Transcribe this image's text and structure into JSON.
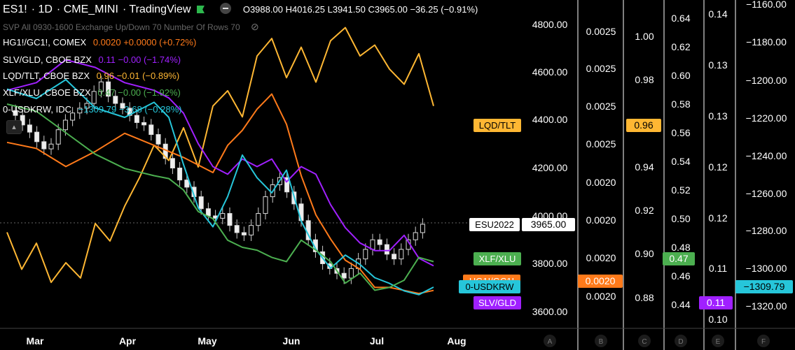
{
  "header": {
    "symbol": "ES1!",
    "interval": "1D",
    "exchange": "CME_MINI",
    "brand": "TradingView",
    "open_label": "O",
    "open": "3988.00",
    "high_label": "H",
    "high": "4016.25",
    "low_label": "L",
    "low": "3941.50",
    "close_label": "C",
    "close": "3965.00",
    "change": "−36.25 (−0.91%)"
  },
  "indicator": {
    "label": "SVP All 0930-1600 Exchange Up/Down 70 Number Of Rows 70"
  },
  "legend": [
    {
      "name": "HG1!/GC1!, COMEX",
      "value": "0.0020",
      "change": "+0.0000 (+0.72%)",
      "color": "#ff7a1a"
    },
    {
      "name": "SLV/GLD, CBOE BZX",
      "value": "0.11",
      "change": "−0.00 (−1.74%)",
      "color": "#a020ff"
    },
    {
      "name": "LQD/TLT, CBOE BZX",
      "value": "0.96",
      "change": "−0.01 (−0.89%)",
      "color": "#ffb733"
    },
    {
      "name": "XLF/XLU, CBOE BZX",
      "value": "0.47",
      "change": "−0.00 (−1.92%)",
      "color": "#4caf50"
    },
    {
      "name": "0-USDKRW, IDC",
      "value": "−1309.79",
      "change": "−3.68 (−0.28%)",
      "color": "#26c6da"
    }
  ],
  "chart_data": {
    "type": "line",
    "x_ticks": [
      "Mar",
      "Apr",
      "May",
      "Jun",
      "Jul",
      "Aug"
    ],
    "axes": [
      {
        "id": "ES",
        "ticks": [
          "4800.00",
          "4600.00",
          "4400.00",
          "4200.00",
          "4000.00",
          "3800.00",
          "3600.00"
        ],
        "range": [
          3600,
          4800
        ]
      },
      {
        "id": "A",
        "ticks": [
          "0.0025",
          "0.0025",
          "0.0025",
          "0.0025",
          "0.0020",
          "0.0020",
          "0.0020",
          "0.0020"
        ]
      },
      {
        "id": "B",
        "ticks": [
          "1.00",
          "0.98",
          "0.96",
          "0.94",
          "0.92",
          "0.90",
          "0.88"
        ],
        "range": [
          0.88,
          1.0
        ]
      },
      {
        "id": "C",
        "ticks": [
          "0.64",
          "0.62",
          "0.60",
          "0.58",
          "0.56",
          "0.54",
          "0.52",
          "0.50",
          "0.48",
          "0.46",
          "0.44"
        ],
        "range": [
          0.44,
          0.64
        ]
      },
      {
        "id": "D",
        "ticks": [
          "0.14",
          "0.13",
          "0.13",
          "0.12",
          "0.12",
          "0.11",
          "0.10"
        ],
        "range": [
          0.1,
          0.14
        ]
      },
      {
        "id": "E",
        "ticks": [
          "−1160.00",
          "−1180.00",
          "−1200.00",
          "−1220.00",
          "−1240.00",
          "−1260.00",
          "−1280.00",
          "−1300.00",
          "−1320.00"
        ],
        "range": [
          -1320,
          -1160
        ]
      }
    ],
    "bottom_axis_letters": [
      "A",
      "B",
      "C",
      "D",
      "E",
      "F"
    ],
    "price_tags": [
      {
        "label": "LQD/TLT",
        "value": "0.96",
        "color": "#ffb733"
      },
      {
        "label": "ESU2022",
        "value": "3965.00",
        "color": "#ffffff"
      },
      {
        "label": "XLF/XLU",
        "value": "0.47",
        "color": "#4caf50"
      },
      {
        "label": "HG1!/GC1!",
        "value": "0.0020",
        "color": "#ff7a1a"
      },
      {
        "label": "0-USDKRW",
        "value": "−1309.79",
        "color": "#26c6da"
      },
      {
        "label": "SLV/GLD",
        "value": "0.11",
        "color": "#a020ff"
      }
    ],
    "series": [
      {
        "name": "LQD/TLT",
        "color": "#ffb733",
        "x": [
          0,
          5,
          10,
          15,
          20,
          25,
          30,
          35,
          40,
          45,
          50,
          55,
          60,
          65,
          70,
          75,
          80,
          85,
          90,
          95,
          100,
          105,
          110,
          115,
          120,
          125,
          130,
          135,
          140,
          145
        ],
        "y": [
          0.91,
          0.893,
          0.905,
          0.887,
          0.896,
          0.889,
          0.914,
          0.906,
          0.922,
          0.935,
          0.95,
          0.943,
          0.958,
          0.94,
          0.968,
          0.975,
          0.963,
          0.991,
          0.999,
          0.981,
          0.995,
          0.979,
          0.998,
          1.004,
          0.991,
          0.996,
          0.985,
          0.978,
          0.992,
          0.968
        ]
      },
      {
        "name": "HG1!/GC1!",
        "color": "#ff7a1a",
        "x": [
          0,
          10,
          20,
          30,
          40,
          50,
          60,
          70,
          75,
          80,
          85,
          90,
          95,
          100,
          105,
          110,
          115,
          120,
          125,
          130,
          135,
          140,
          145
        ],
        "y": [
          0.00246,
          0.00244,
          0.00238,
          0.00243,
          0.00249,
          0.00245,
          0.00241,
          0.00236,
          0.00245,
          0.0025,
          0.00257,
          0.00262,
          0.00252,
          0.00235,
          0.00222,
          0.00214,
          0.00207,
          0.00204,
          0.00198,
          0.00198,
          0.00197,
          0.00196,
          0.00197
        ]
      },
      {
        "name": "SLV/GLD",
        "color": "#a020ff",
        "x": [
          0,
          10,
          20,
          30,
          40,
          50,
          55,
          60,
          65,
          70,
          75,
          80,
          85,
          90,
          95,
          100,
          105,
          110,
          115,
          120,
          125,
          130,
          135,
          140,
          145
        ],
        "y": [
          0.13,
          0.131,
          0.134,
          0.133,
          0.131,
          0.13,
          0.129,
          0.127,
          0.123,
          0.12,
          0.119,
          0.121,
          0.12,
          0.121,
          0.118,
          0.12,
          0.119,
          0.115,
          0.112,
          0.11,
          0.109,
          0.109,
          0.111,
          0.108,
          0.107
        ]
      },
      {
        "name": "0-USDKRW",
        "color": "#26c6da",
        "x": [
          0,
          10,
          20,
          30,
          40,
          50,
          55,
          60,
          65,
          70,
          75,
          80,
          85,
          90,
          95,
          100,
          105,
          110,
          115,
          120,
          125,
          130,
          135,
          140,
          145
        ],
        "y": [
          -1205,
          -1210,
          -1200,
          -1215,
          -1220,
          -1212,
          -1220,
          -1245,
          -1268,
          -1278,
          -1262,
          -1240,
          -1252,
          -1260,
          -1248,
          -1275,
          -1290,
          -1300,
          -1293,
          -1298,
          -1305,
          -1308,
          -1312,
          -1314,
          -1310
        ]
      },
      {
        "name": "XLF/XLU",
        "color": "#4caf50",
        "x": [
          0,
          10,
          20,
          30,
          40,
          50,
          55,
          60,
          65,
          70,
          75,
          80,
          85,
          90,
          95,
          100,
          105,
          110,
          115,
          120,
          125,
          130,
          135,
          140,
          145
        ],
        "y": [
          0.58,
          0.575,
          0.56,
          0.545,
          0.535,
          0.53,
          0.528,
          0.52,
          0.505,
          0.5,
          0.485,
          0.48,
          0.478,
          0.473,
          0.47,
          0.485,
          0.478,
          0.47,
          0.455,
          0.462,
          0.45,
          0.452,
          0.457,
          0.473,
          0.47
        ]
      }
    ],
    "candles": {
      "name": "ES1!",
      "color": "#ffffff",
      "close": [
        4420,
        4380,
        4350,
        4310,
        4280,
        4300,
        4360,
        4400,
        4430,
        4450,
        4470,
        4520,
        4560,
        4500,
        4470,
        4450,
        4420,
        4390,
        4380,
        4340,
        4300,
        4240,
        4200,
        4150,
        4120,
        4080,
        4030,
        4000,
        3990,
        4010,
        3960,
        3930,
        3920,
        3960,
        4010,
        4080,
        4130,
        4160,
        4100,
        4050,
        3980,
        3900,
        3850,
        3800,
        3780,
        3760,
        3740,
        3780,
        3820,
        3860,
        3900,
        3880,
        3840,
        3820,
        3860,
        3900,
        3930,
        3965
      ],
      "x_step": 2.6
    }
  }
}
